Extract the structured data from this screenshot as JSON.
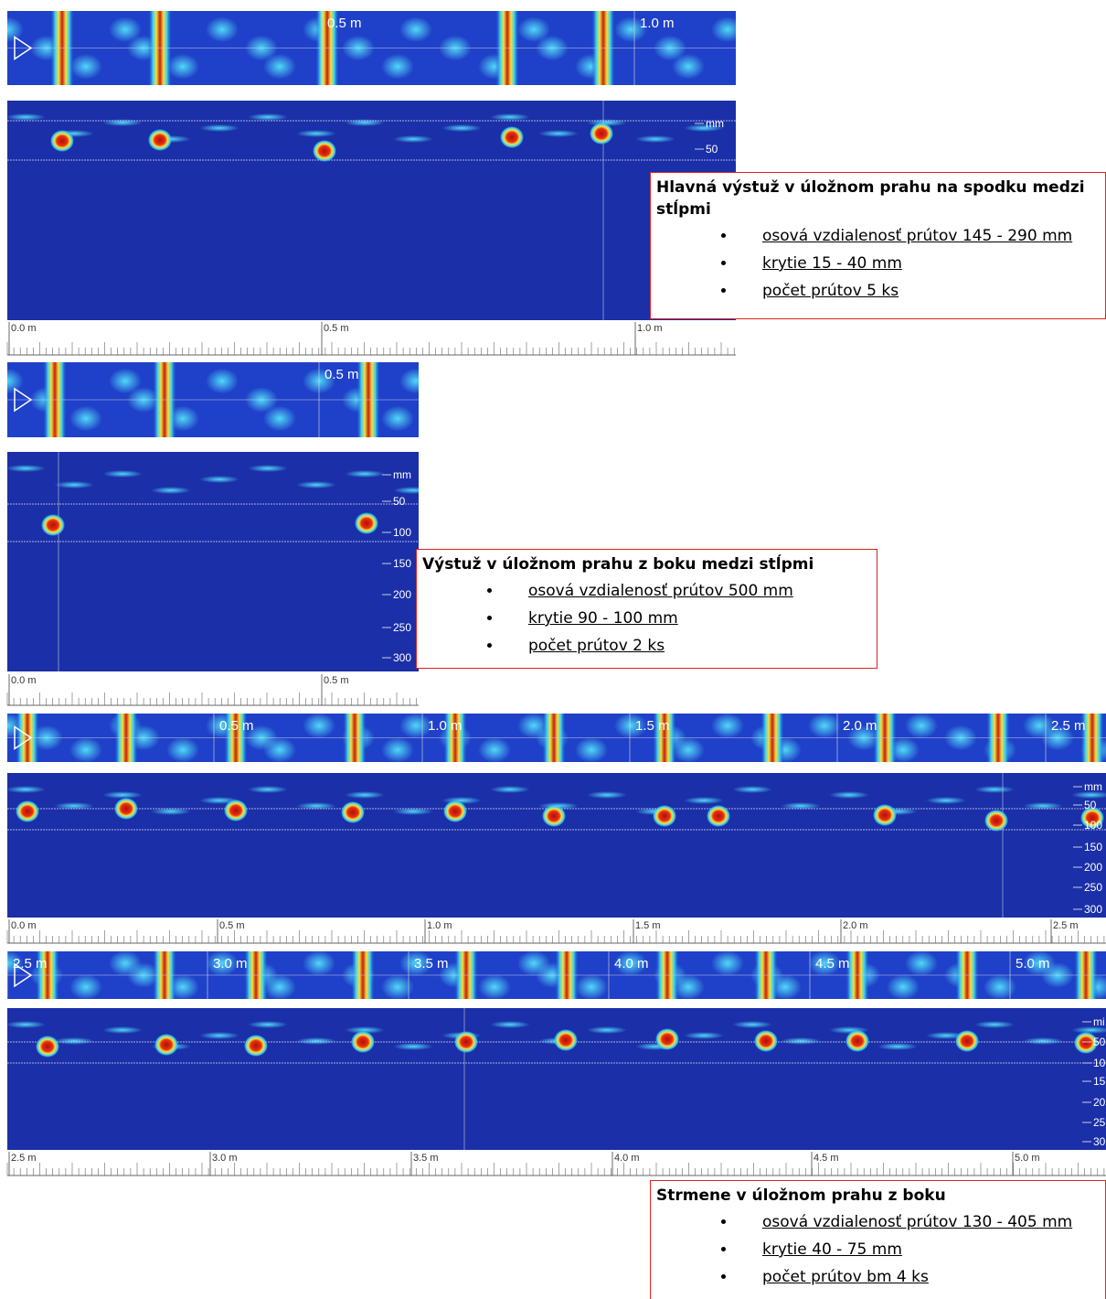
{
  "panels": [
    {
      "top_labels": [
        "0.5 m",
        "1.0 m"
      ],
      "depth_labels": [
        "mm",
        "50"
      ],
      "ruler_labels": [
        "0.0 m",
        "0.5 m",
        "1.0 m"
      ]
    },
    {
      "top_labels": [
        "0.5 m"
      ],
      "depth_labels": [
        "mm",
        "50",
        "100",
        "150",
        "200",
        "250",
        "300"
      ],
      "ruler_labels": [
        "0.0 m",
        "0.5 m"
      ]
    },
    {
      "top_labels": [
        "0.5 m",
        "1.0 m",
        "1.5 m",
        "2.0 m",
        "2.5 m"
      ],
      "depth_labels": [
        "mm",
        "50",
        "100",
        "150",
        "200",
        "250",
        "300"
      ],
      "ruler_labels": [
        "0.0 m",
        "0.5 m",
        "1.0 m",
        "1.5 m",
        "2.0 m",
        "2.5 m"
      ]
    },
    {
      "top_labels": [
        "2.5 m",
        "3.0 m",
        "3.5 m",
        "4.0 m",
        "4.5 m",
        "5.0 m"
      ],
      "depth_labels": [
        "mi",
        "50",
        "10",
        "15",
        "20",
        "25",
        "30"
      ],
      "ruler_labels": [
        "2.5 m",
        "3.0 m",
        "3.5 m",
        "4.0 m",
        "4.5 m",
        "5.0 m"
      ]
    }
  ],
  "notes": [
    {
      "title": "Hlavná výstuž v úložnom prahu na spodku medzi stĺpmi",
      "items": [
        "osová vzdialenosť prútov 145 - 290 mm",
        "krytie 15 - 40 mm",
        "počet prútov 5 ks"
      ]
    },
    {
      "title": "Výstuž v úložnom prahu z boku medzi stĺpmi",
      "items": [
        "osová vzdialenosť prútov 500 mm",
        "krytie 90 - 100 mm",
        "počet prútov 2 ks"
      ]
    },
    {
      "title": "Strmene v úložnom prahu z boku",
      "items": [
        "osová vzdialenosť prútov 130 - 405 mm",
        "krytie 40 - 75 mm",
        "počet prútov bm 4 ks"
      ]
    }
  ]
}
